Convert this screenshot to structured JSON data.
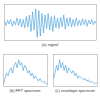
{
  "chart_data": [
    {
      "type": "line",
      "title": "(a) signal",
      "color": "#3a9ad9",
      "tick_labels": false,
      "x": [
        0,
        1,
        2,
        3,
        4,
        5,
        6,
        7,
        8,
        9,
        10,
        11,
        12,
        13,
        14,
        15,
        16,
        17,
        18,
        19,
        20,
        21,
        22,
        23,
        24,
        25,
        26,
        27,
        28,
        29,
        30,
        31,
        32,
        33,
        34,
        35,
        36,
        37,
        38,
        39,
        40,
        41,
        42,
        43,
        44,
        45,
        46,
        47,
        48,
        49,
        50,
        51,
        52,
        53,
        54,
        55,
        56,
        57,
        58,
        59
      ],
      "values": [
        0.1,
        -0.2,
        0.15,
        -0.1,
        0.2,
        -0.25,
        0.1,
        -0.15,
        0.3,
        -0.2,
        0.25,
        -0.3,
        0.2,
        -0.35,
        0.4,
        -0.3,
        0.5,
        -0.6,
        0.7,
        -0.5,
        0.9,
        -1,
        0.8,
        -0.9,
        0.6,
        -0.7,
        0.5,
        -0.4,
        0.6,
        -0.5,
        0.4,
        -0.6,
        0.45,
        -0.35,
        0.3,
        -0.4,
        0.35,
        -0.3,
        0.5,
        -0.45,
        0.3,
        -0.25,
        0.35,
        -0.3,
        0.2,
        -0.25,
        0.3,
        -0.2,
        0.15,
        -0.2,
        0.25,
        -0.15,
        0.2,
        -0.25,
        0.15,
        -0.1,
        0.2,
        -0.15,
        0.1,
        -0.1
      ],
      "xlim": [
        0,
        59
      ],
      "ylim": [
        -1.2,
        1.2
      ]
    },
    {
      "type": "line",
      "title": "(b) FFT spectrum",
      "color": "#3a9ad9",
      "tick_labels": false,
      "x": [
        0,
        1,
        2,
        3,
        4,
        5,
        6,
        7,
        8,
        9,
        10,
        11,
        12,
        13,
        14,
        15,
        16,
        17,
        18,
        19,
        20,
        21,
        22,
        23,
        24,
        25,
        26,
        27,
        28,
        29
      ],
      "values": [
        0.1,
        0.3,
        0.5,
        0.4,
        0.6,
        0.7,
        0.5,
        0.8,
        0.9,
        0.7,
        1,
        0.8,
        0.9,
        0.6,
        0.8,
        0.7,
        0.5,
        0.6,
        0.4,
        0.5,
        0.3,
        0.4,
        0.3,
        0.2,
        0.3,
        0.2,
        0.15,
        0.2,
        0.1,
        0.1
      ],
      "xlim": [
        0,
        29
      ],
      "ylim": [
        0,
        1.2
      ]
    },
    {
      "type": "line",
      "title": "(c) envelope spectrum",
      "color": "#3a9ad9",
      "tick_labels": false,
      "x": [
        0,
        1,
        2,
        3,
        4,
        5,
        6,
        7,
        8,
        9,
        10,
        11,
        12,
        13,
        14,
        15,
        16,
        17,
        18,
        19,
        20,
        21,
        22,
        23,
        24,
        25,
        26,
        27,
        28,
        29
      ],
      "values": [
        0.3,
        0.5,
        0.8,
        0.6,
        1,
        0.7,
        0.9,
        0.6,
        0.8,
        0.5,
        0.7,
        0.6,
        0.5,
        0.6,
        0.4,
        0.5,
        0.3,
        0.4,
        0.35,
        0.3,
        0.25,
        0.3,
        0.2,
        0.25,
        0.15,
        0.2,
        0.15,
        0.1,
        0.15,
        0.1
      ],
      "xlim": [
        0,
        29
      ],
      "ylim": [
        0,
        1.2
      ]
    }
  ]
}
